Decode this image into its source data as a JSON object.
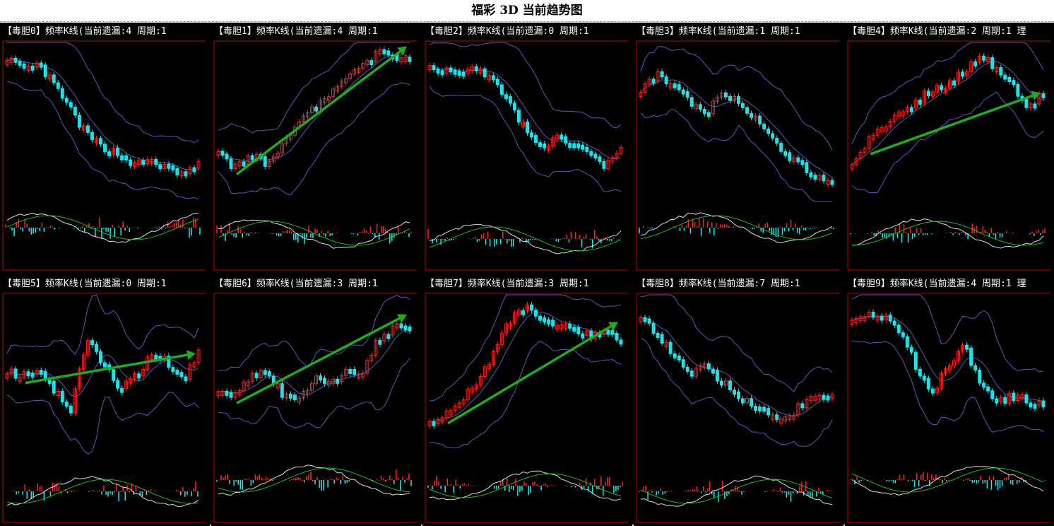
{
  "page": {
    "title": "福彩 3D 当前趋势图"
  },
  "colors": {
    "background": "#000000",
    "bull_candle": "#ff2020",
    "bear_candle": "#20e0e8",
    "band_line": "#5a5ab8",
    "trend_arrow": "#22aa22",
    "macd_fast": "#e0e0e0",
    "macd_slow": "#22bb22",
    "axis_line": "#c00000"
  },
  "panels": [
    {
      "name": "毒胆0",
      "prefix": "【毒胆",
      "digit": "0",
      "suffix": "】频率K线(当前遗漏:4 周期:1",
      "omission": 4,
      "cycle": 1,
      "has_arrow": false
    },
    {
      "name": "毒胆1",
      "prefix": "【毒胆",
      "digit": "1",
      "suffix": "】频率K线(当前遗漏:4 周期:1",
      "omission": 4,
      "cycle": 1,
      "has_arrow": true
    },
    {
      "name": "毒胆2",
      "prefix": "【毒胆",
      "digit": "2",
      "suffix": "】频率K线(当前遗漏:0 周期:1",
      "omission": 0,
      "cycle": 1,
      "has_arrow": false
    },
    {
      "name": "毒胆3",
      "prefix": "【毒胆",
      "digit": "3",
      "suffix": "】频率K线(当前遗漏:1 周期:1",
      "omission": 1,
      "cycle": 1,
      "has_arrow": false
    },
    {
      "name": "毒胆4",
      "prefix": "【毒胆",
      "digit": "4",
      "suffix": "】频率K线(当前遗漏:2 周期:1 理",
      "omission": 2,
      "cycle": 1,
      "has_arrow": true
    },
    {
      "name": "毒胆5",
      "prefix": "【毒胆",
      "digit": "5",
      "suffix": "】频率K线(当前遗漏:0 周期:1",
      "omission": 0,
      "cycle": 1,
      "has_arrow": true
    },
    {
      "name": "毒胆6",
      "prefix": "【毒胆",
      "digit": "6",
      "suffix": "】频率K线(当前遗漏:3 周期:1",
      "omission": 3,
      "cycle": 1,
      "has_arrow": true
    },
    {
      "name": "毒胆7",
      "prefix": "【毒胆",
      "digit": "7",
      "suffix": "】频率K线(当前遗漏:3 周期:1",
      "omission": 3,
      "cycle": 1,
      "has_arrow": true
    },
    {
      "name": "毒胆8",
      "prefix": "【毒胆",
      "digit": "8",
      "suffix": "】频率K线(当前遗漏:7 周期:1",
      "omission": 7,
      "cycle": 1,
      "has_arrow": false
    },
    {
      "name": "毒胆9",
      "prefix": "【毒胆",
      "digit": "9",
      "suffix": "】频率K线(当前遗漏:4 周期:1 理",
      "omission": 4,
      "cycle": 1,
      "has_arrow": false
    }
  ],
  "chart_data": [
    {
      "type": "candlestick",
      "title": "毒胆0",
      "trend": [
        0.92,
        0.82,
        0.86,
        0.72,
        0.56,
        0.4,
        0.32,
        0.28,
        0.2,
        0.24,
        0.18,
        0.14,
        0.2
      ],
      "trend_arrow": false
    },
    {
      "type": "candlestick",
      "title": "毒胆1",
      "trend": [
        0.32,
        0.18,
        0.26,
        0.22,
        0.34,
        0.5,
        0.58,
        0.66,
        0.76,
        0.86,
        0.94,
        0.92,
        0.88
      ],
      "trend_arrow": true
    },
    {
      "type": "candlestick",
      "title": "毒胆2",
      "trend": [
        0.88,
        0.82,
        0.8,
        0.84,
        0.78,
        0.62,
        0.44,
        0.32,
        0.4,
        0.34,
        0.26,
        0.18,
        0.34
      ],
      "trend_arrow": false
    },
    {
      "type": "candlestick",
      "title": "毒胆3",
      "trend": [
        0.7,
        0.8,
        0.72,
        0.64,
        0.52,
        0.66,
        0.62,
        0.54,
        0.42,
        0.28,
        0.2,
        0.14,
        0.08
      ],
      "trend_arrow": false
    },
    {
      "type": "candlestick",
      "title": "毒胆4",
      "trend": [
        0.22,
        0.36,
        0.46,
        0.54,
        0.62,
        0.7,
        0.74,
        0.82,
        0.94,
        0.84,
        0.72,
        0.6,
        0.66
      ],
      "trend_arrow": true
    },
    {
      "type": "candlestick",
      "title": "毒胆5",
      "trend": [
        0.5,
        0.48,
        0.52,
        0.38,
        0.24,
        0.72,
        0.56,
        0.38,
        0.46,
        0.6,
        0.58,
        0.44,
        0.62
      ],
      "trend_arrow": true
    },
    {
      "type": "candlestick",
      "title": "毒胆6",
      "trend": [
        0.38,
        0.34,
        0.46,
        0.52,
        0.36,
        0.3,
        0.46,
        0.42,
        0.5,
        0.46,
        0.72,
        0.8,
        0.78
      ],
      "trend_arrow": true
    },
    {
      "type": "candlestick",
      "title": "毒胆7",
      "trend": [
        0.18,
        0.22,
        0.32,
        0.42,
        0.62,
        0.84,
        0.92,
        0.88,
        0.8,
        0.78,
        0.74,
        0.78,
        0.72
      ],
      "trend_arrow": true
    },
    {
      "type": "candlestick",
      "title": "毒胆8",
      "trend": [
        0.86,
        0.74,
        0.62,
        0.48,
        0.56,
        0.44,
        0.36,
        0.28,
        0.22,
        0.18,
        0.28,
        0.36,
        0.34
      ],
      "trend_arrow": false
    },
    {
      "type": "candlestick",
      "title": "毒胆9",
      "trend": [
        0.84,
        0.88,
        0.86,
        0.78,
        0.54,
        0.36,
        0.54,
        0.68,
        0.44,
        0.3,
        0.34,
        0.32,
        0.28
      ],
      "trend_arrow": false
    }
  ]
}
